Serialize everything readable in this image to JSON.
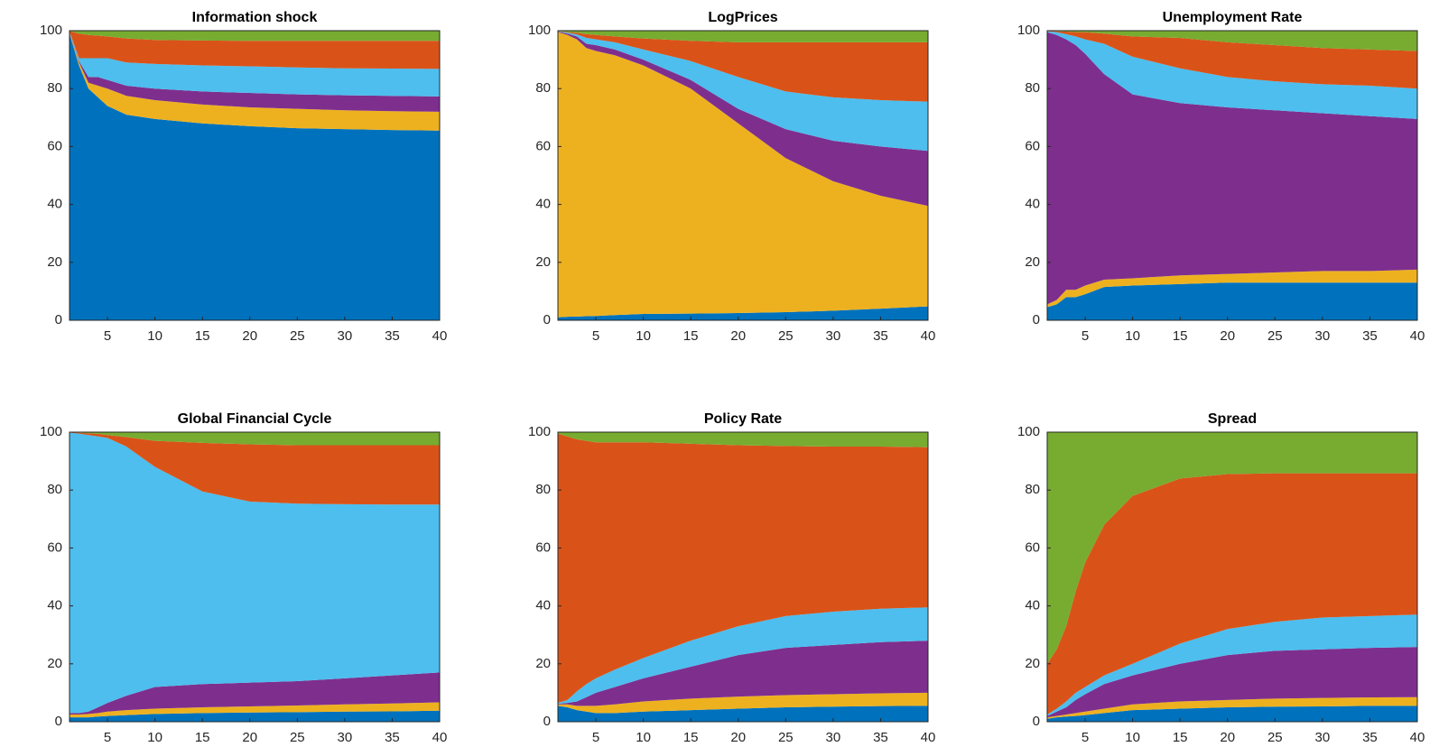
{
  "chart_data": [
    {
      "type": "area",
      "title": "Information shock",
      "x": [
        1,
        2,
        3,
        4,
        5,
        7,
        10,
        15,
        20,
        25,
        30,
        35,
        40
      ],
      "series": [
        {
          "color": "#0072bd",
          "values": [
            99.0,
            88,
            80,
            77,
            74,
            71,
            69.5,
            68,
            67,
            66.3,
            66,
            65.7,
            65.5
          ]
        },
        {
          "color": "#edb120",
          "values": [
            0.3,
            1,
            2,
            4,
            6,
            6.5,
            6.5,
            6.5,
            6.5,
            6.7,
            6.5,
            6.5,
            6.5
          ]
        },
        {
          "color": "#7e2f8e",
          "values": [
            0.2,
            0.5,
            2,
            3,
            3,
            3.5,
            4,
            4.5,
            5,
            5,
            5.2,
            5.3,
            5.3
          ]
        },
        {
          "color": "#4dbeee",
          "values": [
            0.2,
            1,
            6.5,
            6.5,
            7.5,
            8,
            8.5,
            9,
            9.2,
            9.3,
            9.3,
            9.4,
            9.5
          ]
        },
        {
          "color": "#d95319",
          "values": [
            0.2,
            8.5,
            8,
            7.8,
            7.5,
            8.3,
            8.3,
            8.6,
            8.8,
            9.2,
            9.5,
            9.6,
            9.7
          ]
        },
        {
          "color": "#77ac30",
          "values": [
            0.1,
            1,
            1.5,
            1.7,
            2,
            2.7,
            3.2,
            3.4,
            3.5,
            3.5,
            3.5,
            3.5,
            3.5
          ]
        }
      ],
      "xlim": [
        1,
        40
      ],
      "xticks": [
        5,
        10,
        15,
        20,
        25,
        30,
        35,
        40
      ],
      "ylim": [
        0,
        100
      ],
      "yticks": [
        0,
        20,
        40,
        60,
        80,
        100
      ]
    },
    {
      "type": "area",
      "title": "LogPrices",
      "x": [
        1,
        2,
        3,
        4,
        5,
        7,
        10,
        15,
        20,
        25,
        30,
        35,
        40
      ],
      "series": [
        {
          "color": "#0072bd",
          "values": [
            1,
            1.2,
            1.3,
            1.4,
            1.5,
            1.8,
            2.2,
            2.3,
            2.5,
            2.8,
            3.3,
            4,
            4.8
          ]
        },
        {
          "color": "#edb120",
          "values": [
            98.5,
            97.3,
            95.7,
            92.6,
            91.5,
            89.7,
            85.8,
            77.7,
            65.5,
            53.2,
            44.7,
            39,
            34.7
          ]
        },
        {
          "color": "#7e2f8e",
          "values": [
            0.2,
            0.5,
            1,
            1.5,
            2,
            2,
            2,
            3,
            5,
            10,
            14,
            17,
            19
          ]
        },
        {
          "color": "#4dbeee",
          "values": [
            0.1,
            0.3,
            0.7,
            2,
            2,
            2.5,
            3.5,
            6.5,
            11,
            13,
            15,
            16,
            17
          ]
        },
        {
          "color": "#d95319",
          "values": [
            0.1,
            0.2,
            0.6,
            1.3,
            1.5,
            2,
            3.8,
            7,
            12,
            17,
            19,
            20,
            20.5
          ]
        },
        {
          "color": "#77ac30",
          "values": [
            0.1,
            0.5,
            0.7,
            1.2,
            1.5,
            2,
            2.7,
            3.5,
            4,
            4,
            4,
            4,
            4
          ]
        }
      ],
      "xlim": [
        1,
        40
      ],
      "xticks": [
        5,
        10,
        15,
        20,
        25,
        30,
        35,
        40
      ],
      "ylim": [
        0,
        100
      ],
      "yticks": [
        0,
        20,
        40,
        60,
        80,
        100
      ]
    },
    {
      "type": "area",
      "title": "Unemployment Rate",
      "x": [
        1,
        2,
        3,
        4,
        5,
        7,
        10,
        15,
        20,
        25,
        30,
        35,
        40
      ],
      "series": [
        {
          "color": "#0072bd",
          "values": [
            4.5,
            5.5,
            8,
            8,
            9,
            11.5,
            12,
            12.5,
            13,
            13,
            13,
            13,
            13
          ]
        },
        {
          "color": "#edb120",
          "values": [
            1,
            1.5,
            2.5,
            2.5,
            3,
            2.5,
            2.5,
            3,
            3,
            3.5,
            4,
            4,
            4.5
          ]
        },
        {
          "color": "#7e2f8e",
          "values": [
            94,
            91.5,
            86.5,
            84.5,
            80,
            71,
            63.5,
            59.5,
            57.5,
            56,
            54.5,
            53.5,
            52
          ]
        },
        {
          "color": "#4dbeee",
          "values": [
            0.3,
            1,
            1.8,
            3,
            5,
            10.5,
            13,
            12,
            10.5,
            10,
            10,
            10.5,
            10.5
          ]
        },
        {
          "color": "#d95319",
          "values": [
            0.1,
            0.3,
            0.9,
            1.5,
            2.5,
            3.5,
            7,
            10.5,
            12,
            12.5,
            12.5,
            12.5,
            13
          ]
        },
        {
          "color": "#77ac30",
          "values": [
            0.1,
            0.2,
            0.3,
            0.5,
            0.5,
            1,
            2,
            2.5,
            4,
            5,
            6,
            6.5,
            7
          ]
        }
      ],
      "xlim": [
        1,
        40
      ],
      "xticks": [
        5,
        10,
        15,
        20,
        25,
        30,
        35,
        40
      ],
      "ylim": [
        0,
        100
      ],
      "yticks": [
        0,
        20,
        40,
        60,
        80,
        100
      ]
    },
    {
      "type": "area",
      "title": "Global Financial Cycle",
      "x": [
        1,
        2,
        3,
        4,
        5,
        7,
        10,
        15,
        20,
        25,
        30,
        35,
        40
      ],
      "series": [
        {
          "color": "#0072bd",
          "values": [
            1.5,
            1.5,
            1.5,
            1.8,
            2,
            2.3,
            2.7,
            3,
            3.2,
            3.3,
            3.5,
            3.6,
            3.8
          ]
        },
        {
          "color": "#edb120",
          "values": [
            1,
            1,
            1.2,
            1.2,
            1.5,
            1.7,
            1.8,
            2,
            2.1,
            2.3,
            2.5,
            2.7,
            2.9
          ]
        },
        {
          "color": "#7e2f8e",
          "values": [
            0.5,
            0.5,
            0.8,
            2,
            3,
            5,
            7.5,
            8,
            8.2,
            8.4,
            9,
            9.7,
            10.3
          ]
        },
        {
          "color": "#4dbeee",
          "values": [
            96.8,
            96.5,
            95.5,
            93.5,
            91.5,
            86,
            76,
            66.5,
            62.5,
            61.3,
            60.1,
            59,
            58
          ]
        },
        {
          "color": "#d95319",
          "values": [
            0.1,
            0.3,
            0.6,
            0.9,
            1,
            3.3,
            9,
            16.8,
            19.8,
            20.2,
            20.4,
            20.5,
            20.5
          ]
        },
        {
          "color": "#77ac30",
          "values": [
            0.1,
            0.2,
            0.4,
            0.6,
            1,
            1.7,
            3,
            3.7,
            4.2,
            4.5,
            4.5,
            4.5,
            4.5
          ]
        }
      ],
      "xlim": [
        1,
        40
      ],
      "xticks": [
        5,
        10,
        15,
        20,
        25,
        30,
        35,
        40
      ],
      "ylim": [
        0,
        100
      ],
      "yticks": [
        0,
        20,
        40,
        60,
        80,
        100
      ]
    },
    {
      "type": "area",
      "title": "Policy Rate",
      "x": [
        1,
        2,
        3,
        4,
        5,
        7,
        10,
        15,
        20,
        25,
        30,
        35,
        40
      ],
      "series": [
        {
          "color": "#0072bd",
          "values": [
            5.5,
            5,
            4,
            3.5,
            3,
            3,
            3.5,
            4,
            4.5,
            5,
            5.2,
            5.4,
            5.5
          ]
        },
        {
          "color": "#edb120",
          "values": [
            0.5,
            1,
            1.5,
            2,
            2.5,
            3,
            3.5,
            4,
            4.2,
            4.2,
            4.3,
            4.4,
            4.5
          ]
        },
        {
          "color": "#7e2f8e",
          "values": [
            0.2,
            0.5,
            1.5,
            3,
            4.5,
            6,
            8,
            11,
            14.3,
            16.3,
            17,
            17.7,
            18
          ]
        },
        {
          "color": "#4dbeee",
          "values": [
            0.3,
            1,
            3.5,
            4.5,
            5,
            6,
            7,
            9,
            10,
            11,
            11.5,
            11.5,
            11.5
          ]
        },
        {
          "color": "#d95319",
          "values": [
            93,
            91,
            87,
            84,
            81.5,
            78.5,
            74.5,
            68,
            62.5,
            58.7,
            57,
            56,
            55.3
          ]
        },
        {
          "color": "#77ac30",
          "values": [
            0.5,
            1.5,
            2.5,
            3,
            3.5,
            3.5,
            3.5,
            4,
            4.5,
            4.8,
            5,
            5,
            5.2
          ]
        }
      ],
      "xlim": [
        1,
        40
      ],
      "xticks": [
        5,
        10,
        15,
        20,
        25,
        30,
        35,
        40
      ],
      "ylim": [
        0,
        100
      ],
      "yticks": [
        0,
        20,
        40,
        60,
        80,
        100
      ]
    },
    {
      "type": "area",
      "title": "Spread",
      "x": [
        1,
        2,
        3,
        4,
        5,
        7,
        10,
        15,
        20,
        25,
        30,
        35,
        40
      ],
      "series": [
        {
          "color": "#0072bd",
          "values": [
            1,
            1.5,
            1.8,
            2,
            2.3,
            3,
            4,
            4.5,
            5,
            5.2,
            5.3,
            5.5,
            5.5
          ]
        },
        {
          "color": "#edb120",
          "values": [
            0.5,
            0.5,
            0.7,
            1,
            1.2,
            1.5,
            2,
            2.5,
            2.5,
            2.8,
            2.9,
            2.9,
            3
          ]
        },
        {
          "color": "#7e2f8e",
          "values": [
            0.5,
            1.5,
            2.5,
            4.5,
            6,
            8.5,
            10,
            13,
            15.5,
            16.5,
            16.8,
            17.1,
            17.3
          ]
        },
        {
          "color": "#4dbeee",
          "values": [
            0.5,
            1,
            2,
            2.5,
            2.5,
            3,
            4,
            7,
            9,
            10,
            11,
            11,
            11.2
          ]
        },
        {
          "color": "#d95319",
          "values": [
            17.5,
            20.5,
            26,
            35,
            43,
            52,
            58,
            57,
            53.5,
            51.3,
            49.8,
            49.3,
            48.8
          ]
        },
        {
          "color": "#77ac30",
          "values": [
            80,
            75,
            67,
            55,
            45,
            32,
            22,
            16,
            14.5,
            14.2,
            14.2,
            14.2,
            14.2
          ]
        }
      ],
      "xlim": [
        1,
        40
      ],
      "xticks": [
        5,
        10,
        15,
        20,
        25,
        30,
        35,
        40
      ],
      "ylim": [
        0,
        100
      ],
      "yticks": [
        0,
        20,
        40,
        60,
        80,
        100
      ]
    }
  ]
}
